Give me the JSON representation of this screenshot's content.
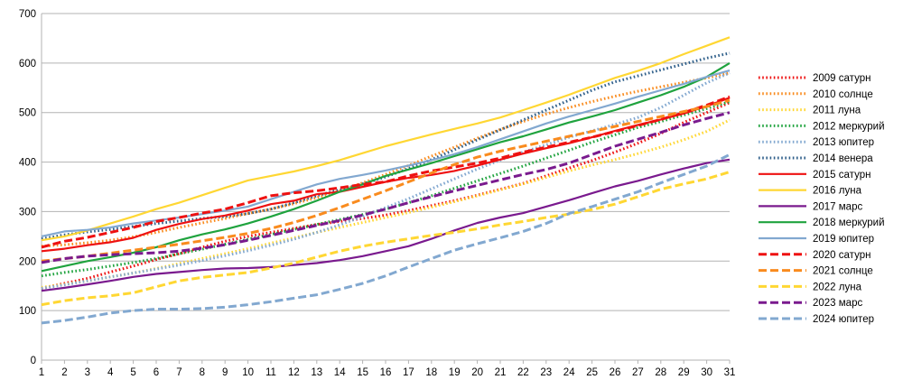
{
  "chart_data": {
    "type": "line",
    "title": "",
    "xlabel": "",
    "ylabel": "",
    "x": [
      1,
      2,
      3,
      4,
      5,
      6,
      7,
      8,
      9,
      10,
      11,
      12,
      13,
      14,
      15,
      16,
      17,
      18,
      19,
      20,
      21,
      22,
      23,
      24,
      25,
      26,
      27,
      28,
      29,
      30,
      31
    ],
    "ylim": [
      0,
      700
    ],
    "yticks": [
      0,
      100,
      200,
      300,
      400,
      500,
      600,
      700
    ],
    "grid": "horizontal",
    "legend_position": "right",
    "series": [
      {
        "name": "2009 сатурн",
        "color": "#ee1111",
        "dash": "dotted",
        "values": [
          145,
          155,
          165,
          178,
          190,
          203,
          215,
          228,
          240,
          250,
          258,
          266,
          274,
          280,
          286,
          293,
          302,
          312,
          322,
          333,
          345,
          357,
          372,
          388,
          403,
          420,
          438,
          458,
          480,
          500,
          520
        ]
      },
      {
        "name": "2010 солнце",
        "color": "#f98b1e",
        "dash": "dotted",
        "values": [
          230,
          233,
          237,
          242,
          249,
          258,
          268,
          277,
          286,
          296,
          305,
          316,
          328,
          342,
          358,
          375,
          393,
          412,
          430,
          448,
          466,
          482,
          497,
          510,
          522,
          533,
          543,
          552,
          561,
          570,
          580
        ]
      },
      {
        "name": "2011 луна",
        "color": "#ffd733",
        "dash": "dotted",
        "values": [
          147,
          153,
          160,
          168,
          176,
          185,
          195,
          205,
          215,
          225,
          236,
          247,
          258,
          268,
          278,
          288,
          298,
          309,
          320,
          332,
          344,
          356,
          369,
          382,
          394,
          405,
          417,
          430,
          445,
          462,
          485
        ]
      },
      {
        "name": "2012 меркурий",
        "color": "#1fa33e",
        "dash": "dotted",
        "values": [
          170,
          177,
          183,
          190,
          197,
          205,
          215,
          224,
          234,
          244,
          254,
          264,
          274,
          284,
          294,
          305,
          318,
          332,
          347,
          362,
          377,
          392,
          408,
          424,
          440,
          455,
          470,
          482,
          495,
          508,
          522
        ]
      },
      {
        "name": "2013 юпитер",
        "color": "#82a8d0",
        "dash": "dotted",
        "values": [
          145,
          152,
          160,
          168,
          176,
          184,
          192,
          201,
          211,
          221,
          232,
          244,
          258,
          273,
          290,
          308,
          326,
          346,
          366,
          386,
          404,
          420,
          435,
          450,
          463,
          476,
          490,
          510,
          535,
          560,
          580
        ]
      },
      {
        "name": "2014 венера",
        "color": "#2f5f8a",
        "dash": "dotted",
        "values": [
          245,
          253,
          259,
          264,
          270,
          276,
          281,
          286,
          290,
          296,
          305,
          318,
          332,
          344,
          356,
          370,
          387,
          405,
          425,
          445,
          465,
          485,
          505,
          525,
          545,
          562,
          574,
          586,
          598,
          610,
          620
        ]
      },
      {
        "name": "2015 сатурн",
        "color": "#ee1111",
        "dash": "solid",
        "values": [
          220,
          225,
          232,
          238,
          247,
          263,
          275,
          285,
          292,
          302,
          315,
          322,
          335,
          340,
          350,
          360,
          368,
          374,
          382,
          393,
          405,
          417,
          428,
          438,
          450,
          463,
          475,
          486,
          498,
          513,
          530
        ]
      },
      {
        "name": "2016 луна",
        "color": "#ffd733",
        "dash": "solid",
        "values": [
          242,
          250,
          262,
          276,
          290,
          305,
          318,
          333,
          348,
          363,
          372,
          381,
          392,
          404,
          418,
          432,
          444,
          456,
          467,
          478,
          490,
          505,
          520,
          536,
          553,
          570,
          584,
          600,
          618,
          635,
          652
        ]
      },
      {
        "name": "2017 марс",
        "color": "#7a1a8e",
        "dash": "solid",
        "values": [
          140,
          146,
          153,
          160,
          168,
          174,
          178,
          182,
          185,
          186,
          188,
          192,
          196,
          202,
          210,
          220,
          230,
          245,
          262,
          277,
          288,
          297,
          310,
          323,
          337,
          351,
          362,
          375,
          387,
          398,
          405
        ]
      },
      {
        "name": "2018 меркурий",
        "color": "#1fa33e",
        "dash": "solid",
        "values": [
          180,
          190,
          200,
          208,
          217,
          228,
          242,
          254,
          264,
          276,
          290,
          305,
          322,
          340,
          355,
          372,
          385,
          398,
          412,
          426,
          440,
          452,
          466,
          480,
          492,
          505,
          520,
          535,
          552,
          572,
          600
        ]
      },
      {
        "name": "2019 юпитер",
        "color": "#82a8d0",
        "dash": "solid",
        "values": [
          250,
          260,
          263,
          268,
          276,
          282,
          288,
          295,
          302,
          310,
          325,
          340,
          355,
          366,
          374,
          383,
          393,
          404,
          416,
          430,
          446,
          462,
          478,
          492,
          505,
          518,
          532,
          545,
          558,
          572,
          585
        ]
      },
      {
        "name": "2020 сатурн",
        "color": "#ee1111",
        "dash": "dashed",
        "values": [
          228,
          240,
          248,
          258,
          268,
          280,
          288,
          297,
          305,
          318,
          332,
          338,
          342,
          348,
          355,
          360,
          372,
          382,
          390,
          398,
          408,
          420,
          430,
          440,
          450,
          462,
          474,
          486,
          500,
          515,
          532
        ]
      },
      {
        "name": "2021 солнце",
        "color": "#f98b1e",
        "dash": "dashed",
        "values": [
          200,
          205,
          210,
          216,
          222,
          228,
          234,
          241,
          248,
          256,
          266,
          278,
          292,
          308,
          325,
          342,
          360,
          378,
          395,
          410,
          422,
          432,
          442,
          452,
          462,
          472,
          482,
          492,
          502,
          512,
          525
        ]
      },
      {
        "name": "2022 луна",
        "color": "#ffd733",
        "dash": "dashed",
        "values": [
          112,
          120,
          126,
          130,
          136,
          148,
          160,
          167,
          172,
          177,
          186,
          196,
          208,
          220,
          230,
          238,
          245,
          252,
          258,
          265,
          273,
          280,
          288,
          295,
          304,
          315,
          330,
          345,
          356,
          366,
          380
        ]
      },
      {
        "name": "2023 марс",
        "color": "#7a1a8e",
        "dash": "dashed",
        "values": [
          197,
          205,
          210,
          213,
          215,
          217,
          220,
          226,
          233,
          242,
          252,
          262,
          272,
          282,
          293,
          305,
          318,
          330,
          342,
          353,
          364,
          375,
          385,
          398,
          415,
          432,
          446,
          460,
          475,
          488,
          500
        ]
      },
      {
        "name": "2024 юпитер",
        "color": "#82a8d0",
        "dash": "dashed",
        "values": [
          75,
          80,
          87,
          95,
          100,
          103,
          103,
          104,
          107,
          112,
          118,
          125,
          132,
          143,
          155,
          170,
          188,
          205,
          222,
          235,
          247,
          260,
          276,
          296,
          310,
          325,
          340,
          358,
          375,
          392,
          415
        ]
      }
    ]
  }
}
